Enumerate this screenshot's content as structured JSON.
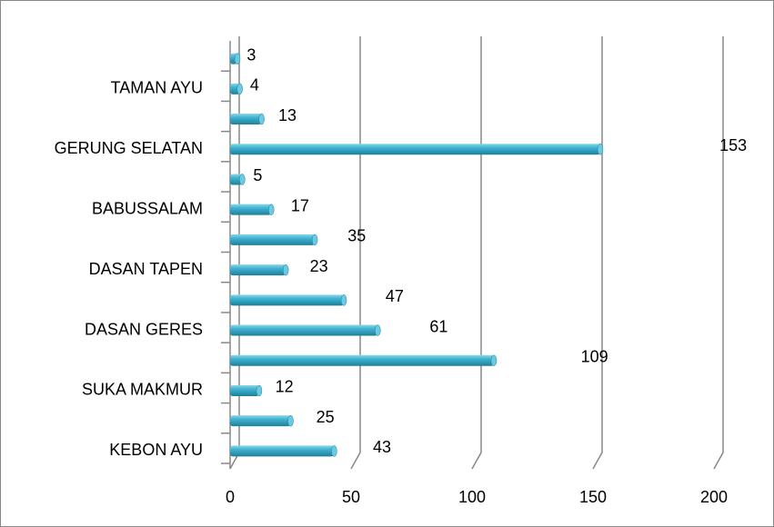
{
  "chart_data": {
    "type": "bar",
    "orientation": "horizontal",
    "categories": [
      "KEBON AYU",
      null,
      "SUKA MAKMUR",
      null,
      "DASAN GERES",
      null,
      "DASAN TAPEN",
      null,
      "BABUSSALAM",
      null,
      "GERUNG SELATAN",
      null,
      "TAMAN AYU",
      null
    ],
    "values": [
      43,
      25,
      12,
      109,
      61,
      47,
      23,
      35,
      17,
      5,
      153,
      13,
      4,
      3
    ],
    "color": "#3fb4d2",
    "xlim": [
      0,
      200
    ],
    "xticks": [
      0,
      50,
      100,
      150,
      200
    ],
    "grid": true
  }
}
